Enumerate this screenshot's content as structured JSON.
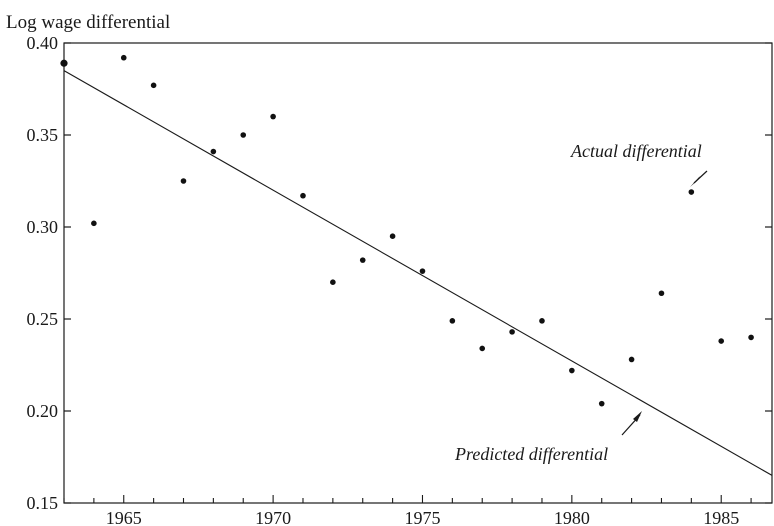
{
  "chart_data": {
    "type": "scatter",
    "title": "",
    "ylabel": "Log wage differential",
    "xlabel": "",
    "xlim": [
      1963,
      1986.7
    ],
    "ylim": [
      0.15,
      0.4
    ],
    "grid": false,
    "x_ticks": [
      1965,
      1970,
      1975,
      1980,
      1985
    ],
    "y_ticks": [
      0.15,
      0.2,
      0.25,
      0.3,
      0.35,
      0.4
    ],
    "y_tick_labels": [
      "0.15",
      "0.20",
      "0.25",
      "0.30",
      "0.35",
      "0.40"
    ],
    "x_tick_labels": [
      "1965",
      "1970",
      "1975",
      "1980",
      "1985"
    ],
    "series": [
      {
        "name": "Actual differential",
        "kind": "points",
        "x": [
          1963,
          1964,
          1965,
          1966,
          1967,
          1968,
          1969,
          1970,
          1971,
          1972,
          1973,
          1974,
          1975,
          1976,
          1977,
          1978,
          1979,
          1980,
          1981,
          1982,
          1983,
          1984,
          1985,
          1986
        ],
        "y": [
          0.389,
          0.302,
          0.392,
          0.377,
          0.325,
          0.341,
          0.35,
          0.36,
          0.317,
          0.27,
          0.282,
          0.295,
          0.276,
          0.249,
          0.234,
          0.243,
          0.249,
          0.222,
          0.204,
          0.228,
          0.264,
          0.319,
          0.238,
          0.24
        ]
      },
      {
        "name": "Predicted differential",
        "kind": "line",
        "x": [
          1963,
          1986.7
        ],
        "y": [
          0.385,
          0.165
        ]
      }
    ],
    "annotations": [
      {
        "text": "Actual differential",
        "target_x": 1984.0,
        "target_y": 0.319
      },
      {
        "text": "Predicted differential",
        "target_x": 1982.9,
        "target_y": 0.205
      }
    ]
  }
}
